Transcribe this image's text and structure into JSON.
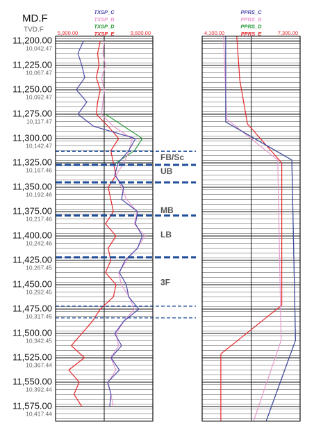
{
  "chart_data": [
    {
      "type": "line",
      "md_title": "MD.F",
      "tvd_title": "TVD.F",
      "ylim": [
        11195,
        11590
      ],
      "yticks": [
        {
          "value": 11200,
          "label": "11,200.00"
        },
        {
          "value": 11225,
          "label": "11,225.00"
        },
        {
          "value": 11250,
          "label": "11,250.00"
        },
        {
          "value": 11275,
          "label": "11,275.00"
        },
        {
          "value": 11300,
          "label": "11,300.00"
        },
        {
          "value": 11325,
          "label": "11,325.00"
        },
        {
          "value": 11350,
          "label": "11,350.00"
        },
        {
          "value": 11375,
          "label": "11,375.00"
        },
        {
          "value": 11400,
          "label": "11,400.00"
        },
        {
          "value": 11425,
          "label": "11,425.00"
        },
        {
          "value": 11450,
          "label": "11,450.00"
        },
        {
          "value": 11475,
          "label": "11,475.00"
        },
        {
          "value": 11500,
          "label": "11,500.00"
        },
        {
          "value": 11525,
          "label": "11,525.00"
        },
        {
          "value": 11550,
          "label": "11,550.00"
        },
        {
          "value": 11575,
          "label": "11,575.00"
        }
      ],
      "tvd_labels": [
        "10,042.47",
        "10,067.47",
        "10,092.47",
        "10,117.47",
        "10,142.47",
        "10,167.46",
        "10,192.46",
        "10,217.46",
        "10,242.46",
        "10,267.45",
        "10,292.45",
        "10,317.45",
        "10,342.45",
        "10,367.44",
        "10,392.44",
        "10,417.44"
      ],
      "xlim": [
        5900,
        9600
      ],
      "xticks": [
        {
          "value": 5900,
          "label": "5,900.00"
        },
        {
          "value": 9600,
          "label": "9,600.00"
        }
      ],
      "vgrid": [
        7750
      ],
      "depth": [
        11200,
        11212.5,
        11225,
        11237.5,
        11250,
        11262.5,
        11275,
        11287.5,
        11300,
        11312.5,
        11325,
        11337.5,
        11350,
        11362.5,
        11375,
        11387.5,
        11400,
        11412.5,
        11425,
        11437.5,
        11450,
        11462.5,
        11475,
        11487.5,
        11500,
        11512.5,
        11525,
        11537.5,
        11550,
        11562.5,
        11575
      ],
      "series": [
        {
          "name": "TXSP_C",
          "color": "#4a4aa8",
          "values": [
            6960,
            6750,
            6900,
            7010,
            6690,
            7090,
            6750,
            7350,
            8940,
            8680,
            8280,
            8150,
            8490,
            8410,
            9020,
            8940,
            9200,
            9020,
            8540,
            8330,
            8590,
            8680,
            9070,
            8490,
            8150,
            8410,
            8010,
            8330,
            7880,
            8010,
            7960
          ]
        },
        {
          "name": "TXSP_B",
          "color": "#e89ad0",
          "values": [
            7750,
            7700,
            7800,
            7650,
            7750,
            7700,
            7650,
            8100,
            8810,
            8700,
            8500,
            8200,
            8400,
            8600,
            9000,
            8900,
            9300,
            9000,
            8600,
            8300,
            8400,
            8700,
            8900,
            8500,
            8200,
            8300,
            8000,
            8200,
            7900,
            8000,
            8100
          ]
        },
        {
          "name": "TXSP_D",
          "color": "#2a9a3a",
          "values": [
            null,
            null,
            null,
            null,
            null,
            null,
            7800,
            8500,
            9200,
            8900,
            8200,
            null,
            null,
            null,
            null,
            null,
            null,
            null,
            null,
            null,
            null,
            null,
            null,
            null,
            null,
            null,
            null,
            null,
            null,
            null,
            null
          ]
        },
        {
          "name": "TXSP_E",
          "color": "#e8262a",
          "values": [
            7600,
            7500,
            7550,
            7450,
            7600,
            7500,
            7450,
            7900,
            8300,
            8000,
            8100,
            8200,
            7900,
            8000,
            8100,
            7800,
            8200,
            7900,
            8000,
            7800,
            8200,
            8100,
            7600,
            7300,
            6900,
            6500,
            7000,
            6400,
            6800,
            6600,
            6900
          ]
        }
      ],
      "tops": [
        {
          "depth": 11313,
          "style": "thin"
        },
        {
          "depth": 11327,
          "style": "thick"
        },
        {
          "depth": 11345,
          "style": "thick"
        },
        {
          "depth": 11379,
          "style": "thick"
        },
        {
          "depth": 11422,
          "style": "thick"
        },
        {
          "depth": 11472,
          "style": "thin"
        },
        {
          "depth": 11484,
          "style": "thin"
        }
      ],
      "zone_labels": [
        {
          "text": "FB/Sc",
          "depth": 11320
        },
        {
          "text": "UB",
          "depth": 11334
        },
        {
          "text": "MB",
          "depth": 11374
        },
        {
          "text": "LB",
          "depth": 11399
        },
        {
          "text": "3F",
          "depth": 11448
        }
      ]
    },
    {
      "type": "line",
      "ylim": [
        11195,
        11590
      ],
      "yticks": [
        11200,
        11225,
        11250,
        11275,
        11300,
        11325,
        11350,
        11375,
        11400,
        11425,
        11450,
        11475,
        11500,
        11525,
        11550,
        11575
      ],
      "xlim": [
        4100,
        7300
      ],
      "xticks": [
        {
          "value": 4100,
          "label": "4,100.00"
        },
        {
          "value": 7300,
          "label": "7,300.00"
        }
      ],
      "vgrid": [
        5700
      ],
      "series": [
        {
          "name": "PPRS_C",
          "color": "#4a4aa8",
          "depth": [
            11195,
            11283,
            11322,
            11507,
            11590
          ],
          "values": [
            4870,
            4870,
            7030,
            7150,
            6190
          ]
        },
        {
          "name": "PPRS_B",
          "color": "#e89ad0",
          "depth": [
            11195,
            11280,
            11322,
            11507,
            11590
          ],
          "values": [
            4800,
            4900,
            6570,
            6680,
            5780
          ]
        },
        {
          "name": "PPRS_D",
          "color": "#2a9a3a",
          "depth": [
            11195,
            11283,
            11322,
            11507,
            11590
          ],
          "values": [
            4870,
            4870,
            7030,
            7150,
            6190
          ]
        },
        {
          "name": "PPRS_E",
          "color": "#e8262a",
          "depth": [
            11195,
            11240,
            11285,
            11325,
            11471,
            11521,
            11590
          ],
          "values": [
            5230,
            5330,
            5580,
            6700,
            6700,
            4710,
            4710
          ]
        }
      ]
    }
  ]
}
